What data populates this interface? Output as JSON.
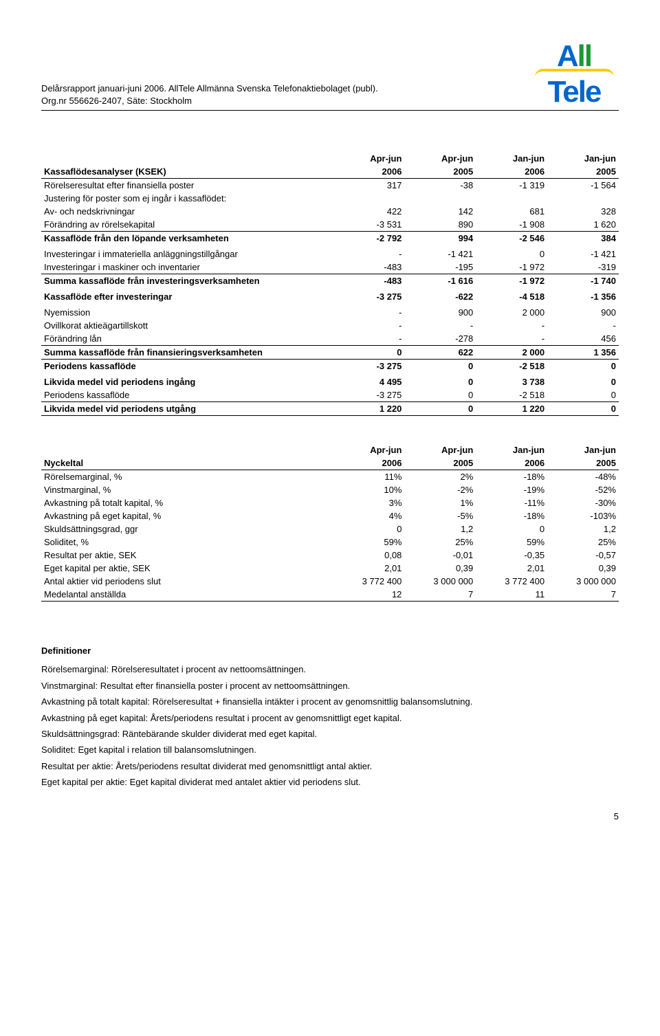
{
  "header": {
    "line1": "Delårsrapport januari-juni 2006. AllTele Allmänna Svenska Telefonaktiebolaget (publ).",
    "line2": "Org.nr 556626-2407, Säte: Stockholm"
  },
  "logo": {
    "a": "A",
    "ll": "ll",
    "bottom": "Tele"
  },
  "table1": {
    "header_labels": [
      "Apr-jun",
      "Apr-jun",
      "Jan-jun",
      "Jan-jun"
    ],
    "header_years": [
      "2006",
      "2005",
      "2006",
      "2005"
    ],
    "title": "Kassaflödesanalyser (KSEK)",
    "rows": [
      {
        "label": "Rörelseresultat efter finansiella poster",
        "v": [
          "317",
          "-38",
          "-1 319",
          "-1 564"
        ],
        "style": ""
      },
      {
        "label": "Justering för poster som ej ingår i kassaflödet:",
        "v": [
          "",
          "",
          "",
          ""
        ],
        "style": ""
      },
      {
        "label": "Av- och nedskrivningar",
        "v": [
          "422",
          "142",
          "681",
          "328"
        ],
        "style": ""
      },
      {
        "label": "Förändring av rörelsekapital",
        "v": [
          "-3 531",
          "890",
          "-1 908",
          "1 620"
        ],
        "style": ""
      },
      {
        "label": "Kassaflöde från den löpande verksamheten",
        "v": [
          "-2 792",
          "994",
          "-2 546",
          "384"
        ],
        "style": "bold border-top"
      },
      {
        "label": "",
        "v": [
          "",
          "",
          "",
          ""
        ],
        "style": "spacer"
      },
      {
        "label": "Investeringar i immateriella anläggningstillgångar",
        "v": [
          "-",
          "-1 421",
          "0",
          "-1 421"
        ],
        "style": ""
      },
      {
        "label": "Investeringar i maskiner och inventarier",
        "v": [
          "-483",
          "-195",
          "-1 972",
          "-319"
        ],
        "style": ""
      },
      {
        "label": "Summa kassaflöde från investeringsverksamheten",
        "v": [
          "-483",
          "-1 616",
          "-1 972",
          "-1 740"
        ],
        "style": "bold border-top"
      },
      {
        "label": "",
        "v": [
          "",
          "",
          "",
          ""
        ],
        "style": "spacer"
      },
      {
        "label": "Kassaflöde efter investeringar",
        "v": [
          "-3 275",
          "-622",
          "-4 518",
          "-1 356"
        ],
        "style": "bold"
      },
      {
        "label": "",
        "v": [
          "",
          "",
          "",
          ""
        ],
        "style": "spacer"
      },
      {
        "label": "Nyemission",
        "v": [
          "-",
          "900",
          "2 000",
          "900"
        ],
        "style": ""
      },
      {
        "label": "Ovillkorat aktieägartillskott",
        "v": [
          "-",
          "-",
          "-",
          "-"
        ],
        "style": ""
      },
      {
        "label": "Förändring lån",
        "v": [
          "-",
          "-278",
          "-",
          "456"
        ],
        "style": ""
      },
      {
        "label": "Summa kassaflöde från finansieringsverksamheten",
        "v": [
          "0",
          "622",
          "2 000",
          "1 356"
        ],
        "style": "bold border-top border-bottom"
      },
      {
        "label": "Periodens kassaflöde",
        "v": [
          "-3 275",
          "0",
          "-2 518",
          "0"
        ],
        "style": "bold"
      },
      {
        "label": "",
        "v": [
          "",
          "",
          "",
          ""
        ],
        "style": "spacer"
      },
      {
        "label": "Likvida medel vid periodens ingång",
        "v": [
          "4 495",
          "0",
          "3 738",
          "0"
        ],
        "style": "bold"
      },
      {
        "label": "Periodens kassaflöde",
        "v": [
          "-3 275",
          "0",
          "-2 518",
          "0"
        ],
        "style": ""
      },
      {
        "label": "Likvida medel vid periodens utgång",
        "v": [
          "1 220",
          "0",
          "1 220",
          "0"
        ],
        "style": "bold border-top border-bottom"
      }
    ]
  },
  "table2": {
    "header_labels": [
      "Apr-jun",
      "Apr-jun",
      "Jan-jun",
      "Jan-jun"
    ],
    "header_years": [
      "2006",
      "2005",
      "2006",
      "2005"
    ],
    "title": "Nyckeltal",
    "rows": [
      {
        "label": "Rörelsemarginal, %",
        "v": [
          "11%",
          "2%",
          "-18%",
          "-48%"
        ]
      },
      {
        "label": "Vinstmarginal, %",
        "v": [
          "10%",
          "-2%",
          "-19%",
          "-52%"
        ]
      },
      {
        "label": "Avkastning på totalt kapital, %",
        "v": [
          "3%",
          "1%",
          "-11%",
          "-30%"
        ]
      },
      {
        "label": "Avkastning på eget kapital, %",
        "v": [
          "4%",
          "-5%",
          "-18%",
          "-103%"
        ]
      },
      {
        "label": "Skuldsättningsgrad, ggr",
        "v": [
          "0",
          "1,2",
          "0",
          "1,2"
        ]
      },
      {
        "label": "Soliditet, %",
        "v": [
          "59%",
          "25%",
          "59%",
          "25%"
        ]
      },
      {
        "label": "Resultat per aktie, SEK",
        "v": [
          "0,08",
          "-0,01",
          "-0,35",
          "-0,57"
        ]
      },
      {
        "label": "Eget kapital per aktie, SEK",
        "v": [
          "2,01",
          "0,39",
          "2,01",
          "0,39"
        ]
      },
      {
        "label": "Antal aktier vid periodens slut",
        "v": [
          "3 772 400",
          "3 000 000",
          "3 772 400",
          "3 000 000"
        ]
      },
      {
        "label": "Medelantal anställda",
        "v": [
          "12",
          "7",
          "11",
          "7"
        ]
      }
    ]
  },
  "definitions": {
    "title": "Definitioner",
    "lines": [
      "Rörelsemarginal: Rörelseresultatet i procent av nettoomsättningen.",
      "Vinstmarginal: Resultat efter finansiella poster i procent av nettoomsättningen.",
      "Avkastning på totalt kapital: Rörelseresultat + finansiella intäkter i procent av genomsnittlig balansomslutning.",
      "Avkastning på eget kapital: Årets/periodens resultat i procent av genomsnittligt eget kapital.",
      "Skuldsättningsgrad: Räntebärande skulder dividerat med eget kapital.",
      "Soliditet: Eget kapital i relation till balansomslutningen.",
      "Resultat per aktie: Årets/periodens resultat dividerat med genomsnittligt antal aktier.",
      "Eget kapital per aktie: Eget kapital dividerat med antalet aktier vid periodens slut."
    ]
  },
  "page_number": "5"
}
